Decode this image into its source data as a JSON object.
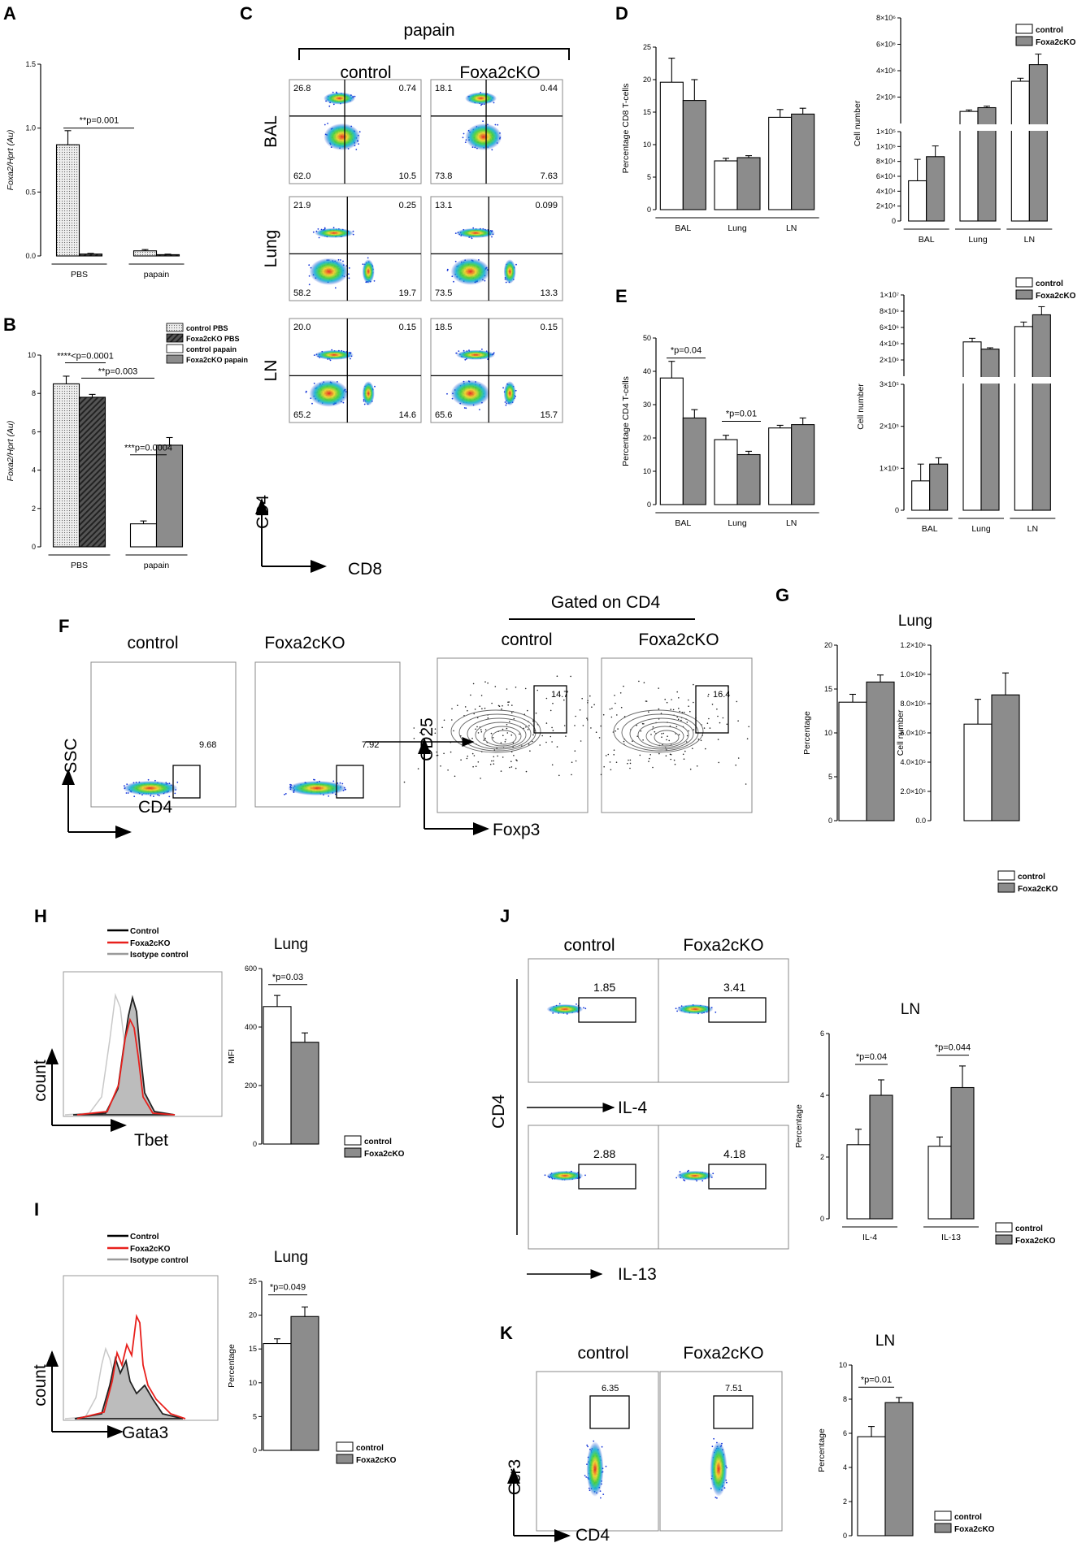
{
  "panel_letters": [
    "A",
    "B",
    "C",
    "D",
    "E",
    "F",
    "G",
    "H",
    "I",
    "J",
    "K"
  ],
  "colors": {
    "control": "#ffffff",
    "ko": "#8c8c8c",
    "ctrl_line": "#000000",
    "ko_line": "#e8201c",
    "iso_line": "#bdbdbd",
    "density": [
      "#1434d8",
      "#1fb6d6",
      "#4ad23a",
      "#f0d52b",
      "#e8241b"
    ]
  },
  "legend": {
    "control": "control",
    "ko": "Foxa2cKO",
    "control_pbs": "control PBS",
    "ko_pbs": "Foxa2cKO PBS",
    "control_papain": "control papain",
    "ko_papain": "Foxa2cKO papain"
  },
  "C": {
    "title": "papain",
    "col1": "control",
    "col2": "Foxa2cKO",
    "rows": [
      {
        "tissue": "BAL",
        "control": [
          "26.8",
          "0.74",
          "62.0",
          "10.5"
        ],
        "ko": [
          "18.1",
          "0.44",
          "73.8",
          "7.63"
        ]
      },
      {
        "tissue": "Lung",
        "control": [
          "21.9",
          "0.25",
          "58.2",
          "19.7"
        ],
        "ko": [
          "13.1",
          "0.099",
          "73.5",
          "13.3"
        ]
      },
      {
        "tissue": "LN",
        "control": [
          "20.0",
          "0.15",
          "65.2",
          "14.6"
        ],
        "ko": [
          "18.5",
          "0.15",
          "65.6",
          "15.7"
        ]
      }
    ],
    "xaxis": "CD8",
    "yaxis": "CD4"
  },
  "F": {
    "col1": "control",
    "col2": "Foxa2cKO",
    "gate1": "9.68",
    "gate2": "7.92",
    "gated_title": "Gated on CD4",
    "col3": "control",
    "col4": "Foxa2cKO",
    "gate3": "14.7",
    "gate4": "16.4",
    "x1": "CD4",
    "y1": "SSC",
    "x2": "Foxp3",
    "y2": "CD25"
  },
  "H": {
    "hist_legend": [
      "Control",
      "Foxa2cKO",
      "Isotype control"
    ],
    "xaxis": "Tbet",
    "yaxis": "count"
  },
  "I": {
    "hist_legend": [
      "Control",
      "Foxa2cKO",
      "Isotype control"
    ],
    "xaxis": "Gata3",
    "yaxis": "count"
  },
  "J": {
    "col1": "control",
    "col2": "Foxa2cKO",
    "g1": "1.85",
    "g2": "3.41",
    "g3": "2.88",
    "g4": "4.18",
    "x1": "IL-4",
    "x2": "IL-13",
    "yaxis": "CD4"
  },
  "K": {
    "col1": "control",
    "col2": "Foxa2cKO",
    "g1": "6.35",
    "g2": "7.51",
    "xaxis": "CD4",
    "yaxis": "Ccr3"
  },
  "chart_data": [
    {
      "id": "A",
      "type": "bar",
      "categories": [
        "PBS",
        "papain"
      ],
      "series": [
        {
          "name": "control",
          "values": [
            0.87,
            0.04
          ]
        },
        {
          "name": "Foxa2cKO",
          "values": [
            0.015,
            0.01
          ]
        }
      ],
      "errors": [
        [
          0.11,
          0.01
        ],
        [
          0.005,
          0.004
        ]
      ],
      "ylabel": "Foxa2/Hprt (Au)",
      "ylim": [
        0,
        1.5
      ],
      "yticks": [
        "0.0",
        "0.5",
        "1.0",
        "1.5"
      ],
      "annotations": [
        "**p=0.001"
      ]
    },
    {
      "id": "B",
      "type": "bar",
      "categories": [
        "PBS",
        "papain"
      ],
      "series": [
        {
          "name": "control",
          "values": [
            8.5,
            1.2
          ]
        },
        {
          "name": "Foxa2cKO",
          "values": [
            7.8,
            5.3
          ]
        }
      ],
      "errors": [
        [
          0.4,
          0.15
        ],
        [
          0.15,
          0.4
        ]
      ],
      "ylabel": "Foxa2/Hprt (Au)",
      "ylim": [
        0,
        10
      ],
      "yticks": [
        "0",
        "2",
        "4",
        "6",
        "8",
        "10"
      ],
      "annotations": [
        "****<p=0.0001",
        "**p=0.003",
        "***p=0.0004"
      ]
    },
    {
      "id": "D1",
      "type": "bar",
      "categories": [
        "BAL",
        "Lung",
        "LN"
      ],
      "series": [
        {
          "name": "control",
          "values": [
            19.6,
            7.5,
            14.2
          ]
        },
        {
          "name": "Foxa2cKO",
          "values": [
            16.8,
            8.0,
            14.7
          ]
        }
      ],
      "errors": [
        [
          3.7,
          0.4,
          1.2
        ],
        [
          3.2,
          0.3,
          0.9
        ]
      ],
      "ylabel": "Percentage CD8 T-cells",
      "ylim": [
        0,
        25
      ],
      "yticks": [
        "0",
        "5",
        "10",
        "15",
        "20",
        "25"
      ]
    },
    {
      "id": "D2",
      "type": "bar",
      "categories": [
        "BAL",
        "Lung",
        "LN"
      ],
      "series": [
        {
          "name": "control",
          "values": [
            45000,
            1800000,
            3800000
          ]
        },
        {
          "name": "Foxa2cKO",
          "values": [
            72000,
            2050000,
            4900000
          ]
        }
      ],
      "errors": [
        [
          24000,
          100000,
          200000
        ],
        [
          12000,
          100000,
          700000
        ]
      ],
      "ylabel": "Cell number",
      "axis_break": true,
      "yticks_low": [
        "0",
        "2×10⁴",
        "4×10⁴",
        "6×10⁴",
        "8×10⁴",
        "1×10⁵",
        "1×10⁵"
      ],
      "yticks_high": [
        "2×10⁶",
        "4×10⁶",
        "6×10⁶",
        "8×10⁶"
      ]
    },
    {
      "id": "E1",
      "type": "bar",
      "categories": [
        "BAL",
        "Lung",
        "LN"
      ],
      "series": [
        {
          "name": "control",
          "values": [
            38,
            19.5,
            23
          ]
        },
        {
          "name": "Foxa2cKO",
          "values": [
            26,
            15,
            24
          ]
        }
      ],
      "errors": [
        [
          5,
          1.3,
          0.8
        ],
        [
          2.5,
          1,
          2
        ]
      ],
      "ylabel": "Percentage CD4 T-cells",
      "ylim": [
        0,
        50
      ],
      "yticks": [
        "0",
        "10",
        "20",
        "30",
        "40",
        "50"
      ],
      "annotations": [
        "*p=0.04",
        "*p=0.01"
      ]
    },
    {
      "id": "E2",
      "type": "bar",
      "categories": [
        "BAL",
        "Lung",
        "LN"
      ],
      "series": [
        {
          "name": "control",
          "values": [
            70000,
            4800000,
            6500000
          ]
        },
        {
          "name": "Foxa2cKO",
          "values": [
            110000,
            4000000,
            7800000
          ]
        }
      ],
      "errors": [
        [
          40000,
          400000,
          500000
        ],
        [
          15000,
          150000,
          900000
        ]
      ],
      "ylabel": "Cell number",
      "axis_break": true,
      "yticks_low": [
        "0",
        "1×10⁵",
        "2×10⁵",
        "3×10⁵"
      ],
      "yticks_high": [
        "2×10⁶",
        "4×10⁶",
        "6×10⁶",
        "8×10⁶",
        "1×10⁷"
      ]
    },
    {
      "id": "G1",
      "title": "Lung",
      "type": "bar",
      "categories": [
        ""
      ],
      "series": [
        {
          "name": "control",
          "values": [
            13.5
          ]
        },
        {
          "name": "Foxa2cKO",
          "values": [
            15.8
          ]
        }
      ],
      "errors": [
        [
          0.9
        ],
        [
          0.8
        ]
      ],
      "ylabel": "Percentage",
      "ylim": [
        0,
        20
      ],
      "yticks": [
        "0",
        "5",
        "10",
        "15",
        "20"
      ]
    },
    {
      "id": "G2",
      "type": "bar",
      "categories": [
        ""
      ],
      "series": [
        {
          "name": "control",
          "values": [
            660000
          ]
        },
        {
          "name": "Foxa2cKO",
          "values": [
            860000
          ]
        }
      ],
      "errors": [
        [
          170000
        ],
        [
          150000
        ]
      ],
      "ylabel": "Cell number",
      "ylim": [
        0,
        1200000
      ],
      "yticks": [
        "0.0",
        "2.0×10⁵",
        "4.0×10⁵",
        "6.0×10⁵",
        "8.0×10⁵",
        "1.0×10⁶",
        "1.2×10⁶"
      ]
    },
    {
      "id": "H",
      "title": "Lung",
      "type": "bar",
      "categories": [
        ""
      ],
      "series": [
        {
          "name": "control",
          "values": [
            470
          ]
        },
        {
          "name": "Foxa2cKO",
          "values": [
            348
          ]
        }
      ],
      "errors": [
        [
          38
        ],
        [
          32
        ]
      ],
      "ylabel": "MFI",
      "ylim": [
        0,
        600
      ],
      "yticks": [
        "0",
        "200",
        "400",
        "600"
      ],
      "annotations": [
        "*p=0.03"
      ]
    },
    {
      "id": "I",
      "title": "Lung",
      "type": "bar",
      "categories": [
        ""
      ],
      "series": [
        {
          "name": "control",
          "values": [
            15.8
          ]
        },
        {
          "name": "Foxa2cKO",
          "values": [
            19.8
          ]
        }
      ],
      "errors": [
        [
          0.7
        ],
        [
          1.4
        ]
      ],
      "ylabel": "Percentage",
      "ylim": [
        0,
        25
      ],
      "yticks": [
        "0",
        "5",
        "10",
        "15",
        "20",
        "25"
      ],
      "annotations": [
        "*p=0.049"
      ]
    },
    {
      "id": "J",
      "title": "LN",
      "type": "bar",
      "categories": [
        "IL-4",
        "IL-13"
      ],
      "series": [
        {
          "name": "control",
          "values": [
            2.4,
            2.35
          ]
        },
        {
          "name": "Foxa2cKO",
          "values": [
            4.0,
            4.25
          ]
        }
      ],
      "errors": [
        [
          0.5,
          0.3
        ],
        [
          0.5,
          0.7
        ]
      ],
      "ylabel": "Percentage",
      "ylim": [
        0,
        6
      ],
      "yticks": [
        "0",
        "2",
        "4",
        "6"
      ],
      "annotations": [
        "*p=0.04",
        "*p=0.044"
      ]
    },
    {
      "id": "K",
      "title": "LN",
      "type": "bar",
      "categories": [
        ""
      ],
      "series": [
        {
          "name": "control",
          "values": [
            5.8
          ]
        },
        {
          "name": "Foxa2cKO",
          "values": [
            7.8
          ]
        }
      ],
      "errors": [
        [
          0.6
        ],
        [
          0.3
        ]
      ],
      "ylabel": "Percentage",
      "ylim": [
        0,
        10
      ],
      "yticks": [
        "0",
        "2",
        "4",
        "6",
        "8",
        "10"
      ],
      "annotations": [
        "*p=0.01"
      ]
    }
  ]
}
